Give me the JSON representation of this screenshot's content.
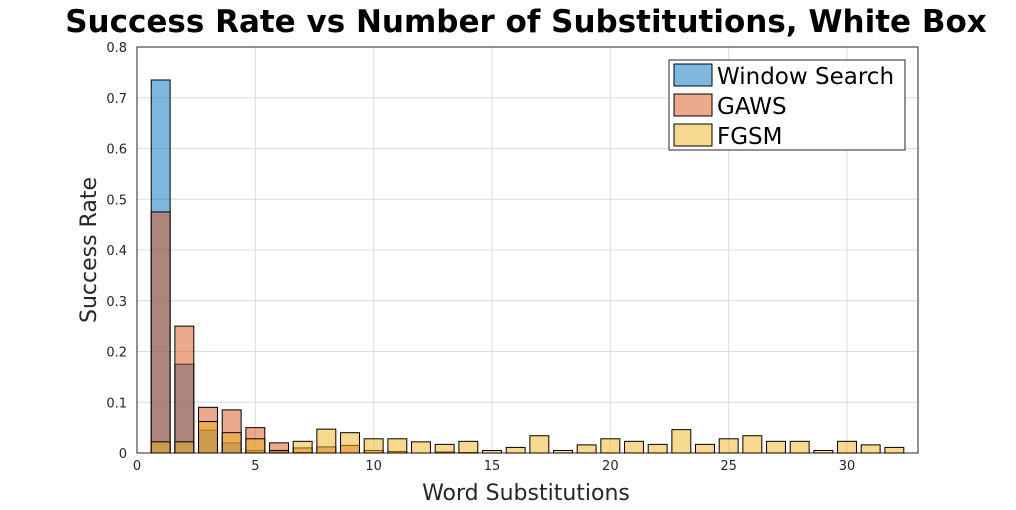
{
  "chart_data": {
    "type": "bar",
    "title": "Success Rate vs Number of Substitutions, White Box",
    "xlabel": "Word Substitutions",
    "ylabel": "Success Rate",
    "xlim": [
      0,
      33
    ],
    "ylim": [
      0,
      0.8
    ],
    "xticks": [
      0,
      5,
      10,
      15,
      20,
      25,
      30
    ],
    "yticks": [
      0,
      0.1,
      0.2,
      0.3,
      0.4,
      0.5,
      0.6,
      0.7,
      0.8
    ],
    "xtick_labels": [
      "0",
      "5",
      "10",
      "15",
      "20",
      "25",
      "30"
    ],
    "ytick_labels": [
      "0",
      "0.1",
      "0.2",
      "0.3",
      "0.4",
      "0.5",
      "0.6",
      "0.7",
      "0.8"
    ],
    "grid": true,
    "legend_position": "top-right",
    "overlay": true,
    "x": [
      1,
      2,
      3,
      4,
      5,
      6,
      7,
      8,
      9,
      10,
      11,
      12,
      13,
      14,
      15,
      16,
      17,
      18,
      19,
      20,
      21,
      22,
      23,
      24,
      25,
      26,
      27,
      28,
      29,
      30,
      31,
      32
    ],
    "series": [
      {
        "name": "Window Search",
        "color": "#0072bd",
        "values": [
          0.735,
          0.175,
          0.045,
          0.02,
          0.005,
          0.002,
          0.001,
          0,
          0,
          0,
          0,
          0,
          0,
          0,
          0,
          0,
          0,
          0,
          0,
          0,
          0,
          0,
          0,
          0,
          0,
          0,
          0,
          0,
          0,
          0,
          0,
          0
        ]
      },
      {
        "name": "GAWS",
        "color": "#d95319",
        "values": [
          0.475,
          0.25,
          0.09,
          0.085,
          0.05,
          0.02,
          0.01,
          0.012,
          0.015,
          0.005,
          0.003,
          0,
          0.002,
          0.001,
          0,
          0,
          0,
          0,
          0,
          0,
          0,
          0,
          0,
          0,
          0,
          0,
          0,
          0,
          0,
          0,
          0,
          0
        ]
      },
      {
        "name": "FGSM",
        "color": "#edb120",
        "values": [
          0.022,
          0.022,
          0.062,
          0.04,
          0.028,
          0.005,
          0.023,
          0.047,
          0.04,
          0.028,
          0.028,
          0.022,
          0.017,
          0.023,
          0.005,
          0.011,
          0.034,
          0.005,
          0.016,
          0.028,
          0.023,
          0.017,
          0.046,
          0.017,
          0.028,
          0.034,
          0.023,
          0.023,
          0.005,
          0.023,
          0.016,
          0.011
        ]
      }
    ]
  }
}
